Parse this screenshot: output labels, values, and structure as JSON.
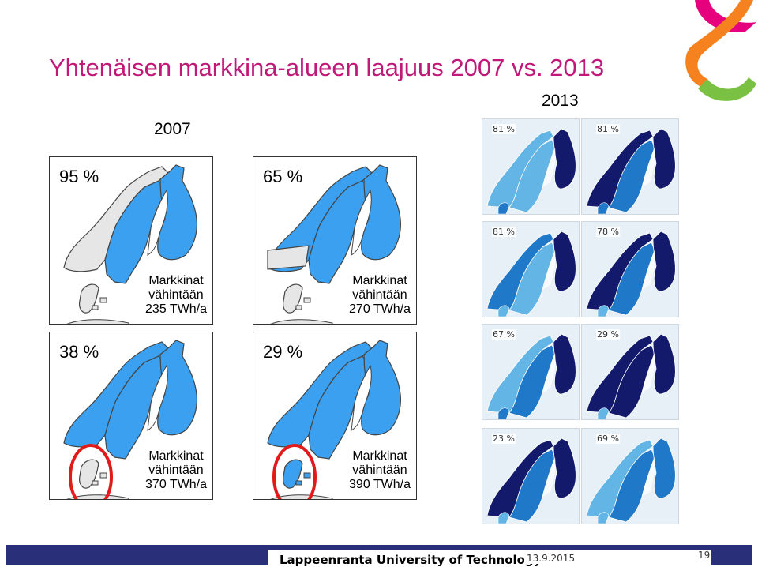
{
  "title": "Yhtenäisen markkina-alueen laajuus 2007 vs. 2013",
  "year_2007": "2007",
  "year_2013": "2013",
  "panels": [
    {
      "percent": "95 %",
      "caption": [
        "Markkinat",
        "vähintään",
        "235 TWh/a"
      ]
    },
    {
      "percent": "65 %",
      "caption": [
        "Markkinat",
        "vähintään",
        "270 TWh/a"
      ]
    },
    {
      "percent": "38 %",
      "caption": [
        "Markkinat",
        "vähintään",
        "370 TWh/a"
      ]
    },
    {
      "percent": "29 %",
      "caption": [
        "Markkinat",
        "vähintään",
        "390 TWh/a"
      ]
    }
  ],
  "minimaps": [
    {
      "label": "81 %"
    },
    {
      "label": "81 %"
    },
    {
      "label": "81 %"
    },
    {
      "label": "78 %"
    },
    {
      "label": "67 %"
    },
    {
      "label": "29 %"
    },
    {
      "label": "23 %"
    },
    {
      "label": "69 %"
    }
  ],
  "footer": {
    "university": "Lappeenranta University of Technology",
    "date": "13.9.2015",
    "page": "19"
  },
  "colors": {
    "title": "#c0197a",
    "market_blue": "#3aa0ef",
    "dark_navy": "#131a6b",
    "mid_blue": "#1f78c8",
    "light_blue": "#63b5e6",
    "outside_gray": "#e6e6e6",
    "highlight_circle": "#e21a1a",
    "footer_bar": "#2a2f7a",
    "logo_orange": "#f5821f",
    "logo_pink": "#e6007e",
    "logo_green": "#7ac143"
  }
}
